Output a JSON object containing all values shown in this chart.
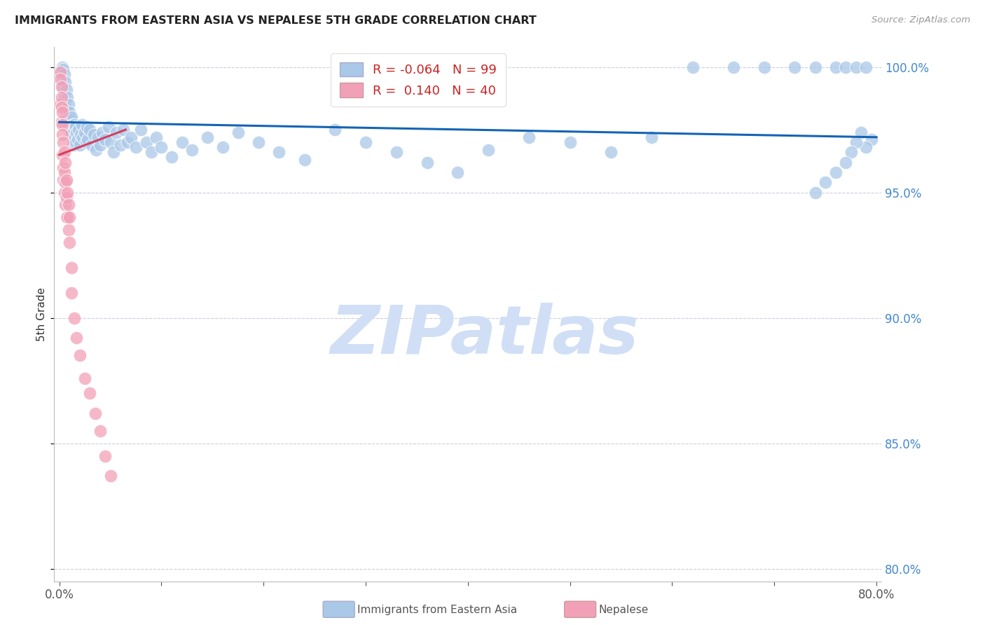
{
  "title": "IMMIGRANTS FROM EASTERN ASIA VS NEPALESE 5TH GRADE CORRELATION CHART",
  "source": "Source: ZipAtlas.com",
  "ylabel": "5th Grade",
  "xlim": [
    -0.005,
    0.805
  ],
  "ylim": [
    0.795,
    1.008
  ],
  "y_ticks": [
    0.8,
    0.85,
    0.9,
    0.95,
    1.0
  ],
  "y_tick_labels": [
    "80.0%",
    "85.0%",
    "90.0%",
    "95.0%",
    "100.0%"
  ],
  "x_ticks": [
    0.0,
    0.1,
    0.2,
    0.3,
    0.4,
    0.5,
    0.6,
    0.7,
    0.8
  ],
  "x_tick_labels": [
    "0.0%",
    "",
    "",
    "",
    "",
    "",
    "",
    "",
    "80.0%"
  ],
  "blue_R": -0.064,
  "blue_N": 99,
  "pink_R": 0.14,
  "pink_N": 40,
  "blue_color": "#aac8e8",
  "pink_color": "#f2a0b8",
  "blue_line_color": "#1464b4",
  "pink_line_color": "#d44060",
  "background_color": "#ffffff",
  "watermark": "ZIPatlas",
  "watermark_color": "#d0dff5",
  "legend_blue_label": "Immigrants from Eastern Asia",
  "legend_pink_label": "Nepalese",
  "blue_line_x0": 0.0,
  "blue_line_y0": 0.978,
  "blue_line_x1": 0.8,
  "blue_line_y1": 0.972,
  "pink_line_x0": 0.0,
  "pink_line_y0": 0.965,
  "pink_line_x1": 0.065,
  "pink_line_y1": 0.975,
  "blue_x": [
    0.002,
    0.003,
    0.003,
    0.004,
    0.004,
    0.005,
    0.005,
    0.006,
    0.006,
    0.007,
    0.007,
    0.008,
    0.008,
    0.009,
    0.009,
    0.01,
    0.01,
    0.011,
    0.011,
    0.012,
    0.012,
    0.013,
    0.013,
    0.014,
    0.014,
    0.015,
    0.015,
    0.016,
    0.016,
    0.017,
    0.018,
    0.019,
    0.02,
    0.021,
    0.022,
    0.023,
    0.025,
    0.026,
    0.027,
    0.028,
    0.03,
    0.032,
    0.034,
    0.036,
    0.038,
    0.04,
    0.042,
    0.045,
    0.048,
    0.05,
    0.053,
    0.056,
    0.06,
    0.063,
    0.067,
    0.07,
    0.075,
    0.08,
    0.085,
    0.09,
    0.095,
    0.1,
    0.11,
    0.12,
    0.13,
    0.145,
    0.16,
    0.175,
    0.195,
    0.215,
    0.24,
    0.27,
    0.3,
    0.33,
    0.36,
    0.39,
    0.42,
    0.46,
    0.5,
    0.54,
    0.58,
    0.62,
    0.66,
    0.69,
    0.72,
    0.74,
    0.76,
    0.77,
    0.78,
    0.79,
    0.795,
    0.79,
    0.785,
    0.78,
    0.775,
    0.77,
    0.76,
    0.75,
    0.74
  ],
  "blue_y": [
    0.998,
    1.0,
    0.995,
    0.999,
    0.992,
    0.997,
    0.988,
    0.994,
    0.985,
    0.991,
    0.982,
    0.988,
    0.979,
    0.985,
    0.976,
    0.982,
    0.975,
    0.979,
    0.973,
    0.98,
    0.974,
    0.977,
    0.971,
    0.975,
    0.969,
    0.977,
    0.972,
    0.976,
    0.97,
    0.974,
    0.971,
    0.975,
    0.969,
    0.973,
    0.977,
    0.972,
    0.974,
    0.97,
    0.976,
    0.971,
    0.975,
    0.969,
    0.973,
    0.967,
    0.972,
    0.969,
    0.974,
    0.971,
    0.976,
    0.97,
    0.966,
    0.974,
    0.969,
    0.975,
    0.97,
    0.972,
    0.968,
    0.975,
    0.97,
    0.966,
    0.972,
    0.968,
    0.964,
    0.97,
    0.967,
    0.972,
    0.968,
    0.974,
    0.97,
    0.966,
    0.963,
    0.975,
    0.97,
    0.966,
    0.962,
    0.958,
    0.967,
    0.972,
    0.97,
    0.966,
    0.972,
    1.0,
    1.0,
    1.0,
    1.0,
    1.0,
    1.0,
    1.0,
    1.0,
    1.0,
    0.971,
    0.968,
    0.974,
    0.97,
    0.966,
    0.962,
    0.958,
    0.954,
    0.95
  ],
  "pink_x": [
    0.001,
    0.001,
    0.001,
    0.002,
    0.002,
    0.002,
    0.002,
    0.003,
    0.003,
    0.003,
    0.003,
    0.004,
    0.004,
    0.004,
    0.005,
    0.005,
    0.005,
    0.006,
    0.006,
    0.006,
    0.007,
    0.007,
    0.007,
    0.008,
    0.008,
    0.009,
    0.009,
    0.01,
    0.01,
    0.012,
    0.012,
    0.015,
    0.017,
    0.02,
    0.025,
    0.03,
    0.035,
    0.04,
    0.045,
    0.05
  ],
  "pink_y": [
    0.998,
    0.995,
    0.985,
    0.992,
    0.988,
    0.984,
    0.978,
    0.982,
    0.977,
    0.973,
    0.965,
    0.97,
    0.96,
    0.955,
    0.966,
    0.958,
    0.95,
    0.962,
    0.954,
    0.945,
    0.955,
    0.948,
    0.94,
    0.95,
    0.94,
    0.945,
    0.935,
    0.94,
    0.93,
    0.92,
    0.91,
    0.9,
    0.892,
    0.885,
    0.876,
    0.87,
    0.862,
    0.855,
    0.845,
    0.837
  ]
}
